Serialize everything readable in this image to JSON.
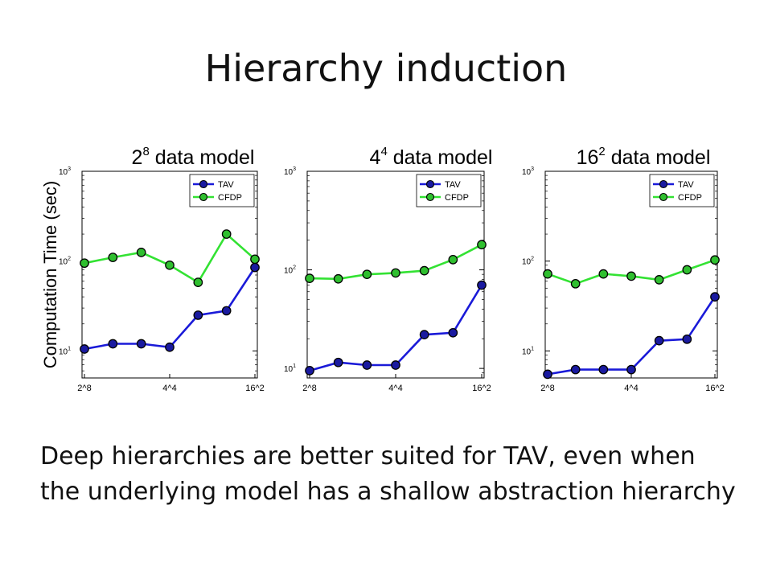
{
  "slide": {
    "title": "Hierarchy induction",
    "caption": "Deep hierarchies are better suited for TAV, even when the underlying model has a shallow abstraction hierarchy"
  },
  "colors": {
    "TAV": "#1a1ad8",
    "CFDP": "#33e233",
    "TAV_marker": "#1a1aa0",
    "CFDP_marker": "#2fbf2f"
  },
  "chart_data": [
    {
      "type": "line",
      "title_base": "2",
      "title_exp": "8",
      "title_rest": " data model",
      "ylabel": "Computation Time (sec)",
      "yscale": "log",
      "ylim": [
        5,
        1000
      ],
      "ytick_labels": [
        "10",
        "10",
        "10"
      ],
      "ytick_exps": [
        "1",
        "2",
        "3"
      ],
      "x_tick_labels": [
        "2^8",
        "4^4",
        "16^2"
      ],
      "x_tick_positions": [
        0,
        3,
        6
      ],
      "legend": "top-right",
      "series": [
        {
          "name": "TAV",
          "values": [
            10.5,
            12,
            12,
            11,
            25,
            28,
            85
          ]
        },
        {
          "name": "CFDP",
          "values": [
            95,
            110,
            125,
            90,
            58,
            200,
            105
          ]
        }
      ]
    },
    {
      "type": "line",
      "title_base": "4",
      "title_exp": "4",
      "title_rest": " data model",
      "ylabel": "",
      "yscale": "log",
      "ylim": [
        8,
        1000
      ],
      "ytick_labels": [
        "10",
        "10",
        "10"
      ],
      "ytick_exps": [
        "1",
        "2",
        "3"
      ],
      "x_tick_labels": [
        "2^8",
        "4^4",
        "16^2"
      ],
      "x_tick_positions": [
        0,
        3,
        6
      ],
      "legend": "top-right",
      "series": [
        {
          "name": "TAV",
          "values": [
            9.5,
            11.5,
            10.8,
            10.8,
            22,
            23,
            70
          ]
        },
        {
          "name": "CFDP",
          "values": [
            82,
            81,
            90,
            93,
            98,
            127,
            180
          ]
        }
      ]
    },
    {
      "type": "line",
      "title_base": "16",
      "title_exp": "2",
      "title_rest": " data model",
      "ylabel": "",
      "yscale": "log",
      "ylim": [
        5,
        1000
      ],
      "ytick_labels": [
        "10",
        "10",
        "10"
      ],
      "ytick_exps": [
        "1",
        "2",
        "3"
      ],
      "x_tick_labels": [
        "2^8",
        "4^4",
        "16^2"
      ],
      "x_tick_positions": [
        0,
        3,
        6
      ],
      "legend": "top-right",
      "series": [
        {
          "name": "TAV",
          "values": [
            5.5,
            6.2,
            6.2,
            6.2,
            13,
            13.5,
            40
          ]
        },
        {
          "name": "CFDP",
          "values": [
            72,
            56,
            72,
            68,
            62,
            80,
            103
          ]
        }
      ]
    }
  ]
}
